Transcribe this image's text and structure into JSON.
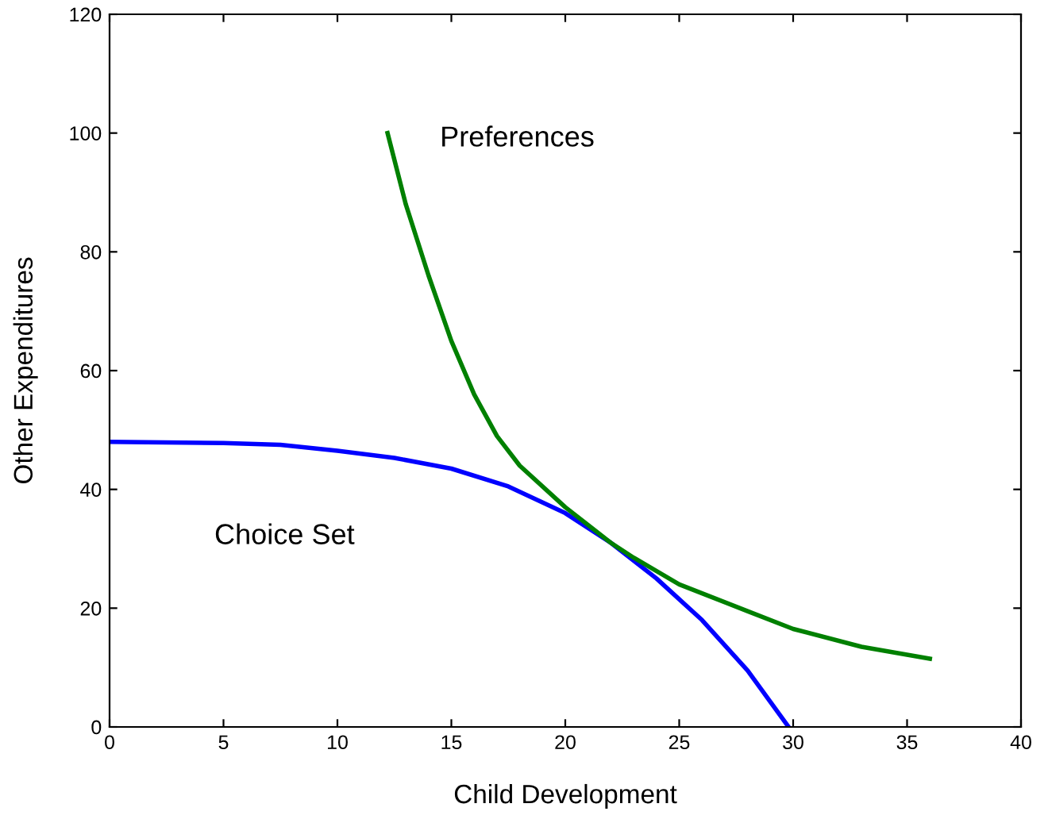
{
  "chart_data": {
    "type": "line",
    "xlabel": "Child Development",
    "ylabel": "Other Expenditures",
    "xlim": [
      0,
      40
    ],
    "ylim": [
      0,
      120
    ],
    "xticks": [
      0,
      5,
      10,
      15,
      20,
      25,
      30,
      35,
      40
    ],
    "yticks": [
      0,
      20,
      40,
      60,
      80,
      100,
      120
    ],
    "series": [
      {
        "color": "#0000ff",
        "x": [
          0,
          5,
          7.5,
          10,
          12.5,
          15,
          17.5,
          20,
          22,
          24,
          26,
          28,
          29.8
        ],
        "values": [
          48,
          47.8,
          47.5,
          46.5,
          45.3,
          43.5,
          40.5,
          36,
          31,
          25,
          18,
          9.5,
          0
        ]
      },
      {
        "color": "#008000",
        "x": [
          12.2,
          13,
          14,
          15,
          16,
          17,
          18,
          20,
          22,
          23,
          25,
          28,
          30,
          33,
          36
        ],
        "values": [
          100,
          88,
          76,
          65,
          56,
          49,
          44,
          37,
          31,
          28.5,
          24,
          19.5,
          16.5,
          13.5,
          11.5
        ]
      }
    ],
    "annotations": [
      "Preferences",
      "Choice Set"
    ],
    "grid": false,
    "legend": false
  }
}
